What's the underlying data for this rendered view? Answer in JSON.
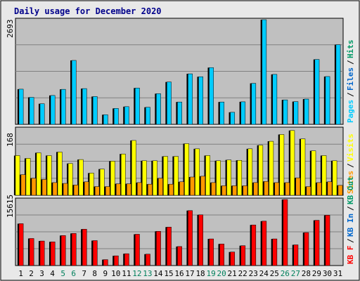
{
  "chart_data": {
    "type": "bar",
    "title": "Daily usage for December 2020",
    "categories": [
      "1",
      "2",
      "3",
      "4",
      "5",
      "6",
      "7",
      "8",
      "9",
      "10",
      "11",
      "12",
      "13",
      "14",
      "15",
      "16",
      "17",
      "18",
      "19",
      "20",
      "21",
      "22",
      "23",
      "24",
      "25",
      "26",
      "27",
      "28",
      "29",
      "30",
      "31"
    ],
    "weekend_days": [
      "5",
      "6",
      "12",
      "13",
      "19",
      "20",
      "26",
      "27"
    ],
    "colors": {
      "hits": "#009966",
      "files": "#0066cc",
      "pages": "#00ccff",
      "visits": "#ffff00",
      "sites": "#ff9900",
      "kbin": "#0066cc",
      "kbout": "#009966",
      "kbf": "#ff0000",
      "panel_bg": "#c0c0c0",
      "frame_bg": "#e8e8e8",
      "grid": "#808080",
      "title": "#00008b",
      "weekday_tick": "#000000",
      "weekend_tick": "#00805c"
    },
    "panels": [
      {
        "id": "hits-files-pages",
        "ymax_label": "2693",
        "ymax": 2693,
        "grid_fractions": [
          0.25,
          0.5,
          0.75
        ],
        "series": [
          {
            "name": "Hits",
            "color_key": "hits",
            "values": [
              0,
              0,
              0,
              0,
              0,
              0,
              0,
              0,
              0,
              0,
              0,
              0,
              0,
              0,
              0,
              0,
              0,
              0,
              0,
              0,
              0,
              0,
              0,
              0,
              0,
              0,
              0,
              0,
              0,
              0,
              0
            ]
          },
          {
            "name": "Files",
            "color_key": "files",
            "values": [
              0,
              0,
              0,
              0,
              0,
              0,
              0,
              0,
              0,
              0,
              0,
              0,
              0,
              0,
              0,
              0,
              0,
              0,
              0,
              0,
              0,
              0,
              0,
              0,
              0,
              0,
              0,
              0,
              0,
              0,
              0
            ]
          },
          {
            "name": "Pages",
            "color_key": "pages",
            "values": [
              905,
              695,
              530,
              743,
              901,
              1645,
              920,
              715,
              248,
              410,
              455,
              935,
              440,
              790,
              1090,
              575,
              1300,
              1225,
              1460,
              575,
              310,
              580,
              1055,
              2693,
              1285,
              630,
              585,
              650,
              1670,
              1230,
              2050
            ]
          }
        ],
        "legend": [
          {
            "text": "Pages",
            "color_key": "pages"
          },
          {
            "text": "/",
            "color_key": "weekday_tick"
          },
          {
            "text": "Files",
            "color_key": "files"
          },
          {
            "text": "/",
            "color_key": "weekday_tick"
          },
          {
            "text": "Hits",
            "color_key": "hits"
          }
        ]
      },
      {
        "id": "visits-sites",
        "ymax_label": "168",
        "ymax": 168,
        "grid_fractions": [
          0.25,
          0.5,
          0.75
        ],
        "series": [
          {
            "name": "Visits",
            "color_key": "visits",
            "values": [
              100,
              93,
              107,
              100,
              109,
              80,
              90,
              56,
              66,
              86,
              104,
              138,
              87,
              87,
              98,
              98,
              130,
              117,
              100,
              87,
              89,
              88,
              117,
              126,
              136,
              153,
              163,
              142,
              112,
              100,
              87
            ]
          },
          {
            "name": "Sites",
            "color_key": "sites",
            "values": [
              52,
              43,
              40,
              32,
              30,
              26,
              34,
              22,
              22,
              29,
              29,
              32,
              28,
              43,
              28,
              34,
              46,
              48,
              32,
              24,
              24,
              24,
              32,
              35,
              32,
              32,
              44,
              22,
              32,
              34,
              25
            ]
          }
        ],
        "legend": [
          {
            "text": "Sites",
            "color_key": "sites"
          },
          {
            "text": "/",
            "color_key": "weekday_tick"
          },
          {
            "text": "Visits",
            "color_key": "visits"
          }
        ]
      },
      {
        "id": "kbytes",
        "ymax_label": "15615",
        "ymax": 15615,
        "grid_fractions": [
          0.25,
          0.5,
          0.75
        ],
        "series": [
          {
            "name": "KB In",
            "color_key": "kbin",
            "values": [
              0,
              0,
              0,
              0,
              0,
              0,
              0,
              0,
              0,
              0,
              0,
              0,
              0,
              0,
              0,
              0,
              0,
              0,
              0,
              0,
              0,
              0,
              0,
              0,
              0,
              0,
              0,
              0,
              0,
              0,
              0
            ]
          },
          {
            "name": "KB Out",
            "color_key": "kbout",
            "values": [
              0,
              0,
              0,
              0,
              0,
              0,
              0,
              0,
              0,
              0,
              0,
              0,
              0,
              0,
              0,
              0,
              0,
              0,
              0,
              0,
              0,
              0,
              0,
              0,
              0,
              0,
              0,
              0,
              0,
              0,
              0
            ]
          },
          {
            "name": "KB F",
            "color_key": "kbf",
            "values": [
              9900,
              6400,
              5800,
              5600,
              7100,
              7600,
              8600,
              5900,
              1400,
              2300,
              2800,
              7400,
              2700,
              8100,
              9100,
              4500,
              13000,
              12000,
              6300,
              5100,
              3200,
              4700,
              9600,
              10500,
              6300,
              15615,
              4900,
              7800,
              10700,
              11900,
              0
            ]
          }
        ],
        "legend": [
          {
            "text": "KB F",
            "color_key": "kbf"
          },
          {
            "text": "/",
            "color_key": "weekday_tick"
          },
          {
            "text": "KB In",
            "color_key": "kbin"
          },
          {
            "text": "/",
            "color_key": "weekday_tick"
          },
          {
            "text": "KB Out",
            "color_key": "kbout"
          }
        ]
      }
    ]
  }
}
